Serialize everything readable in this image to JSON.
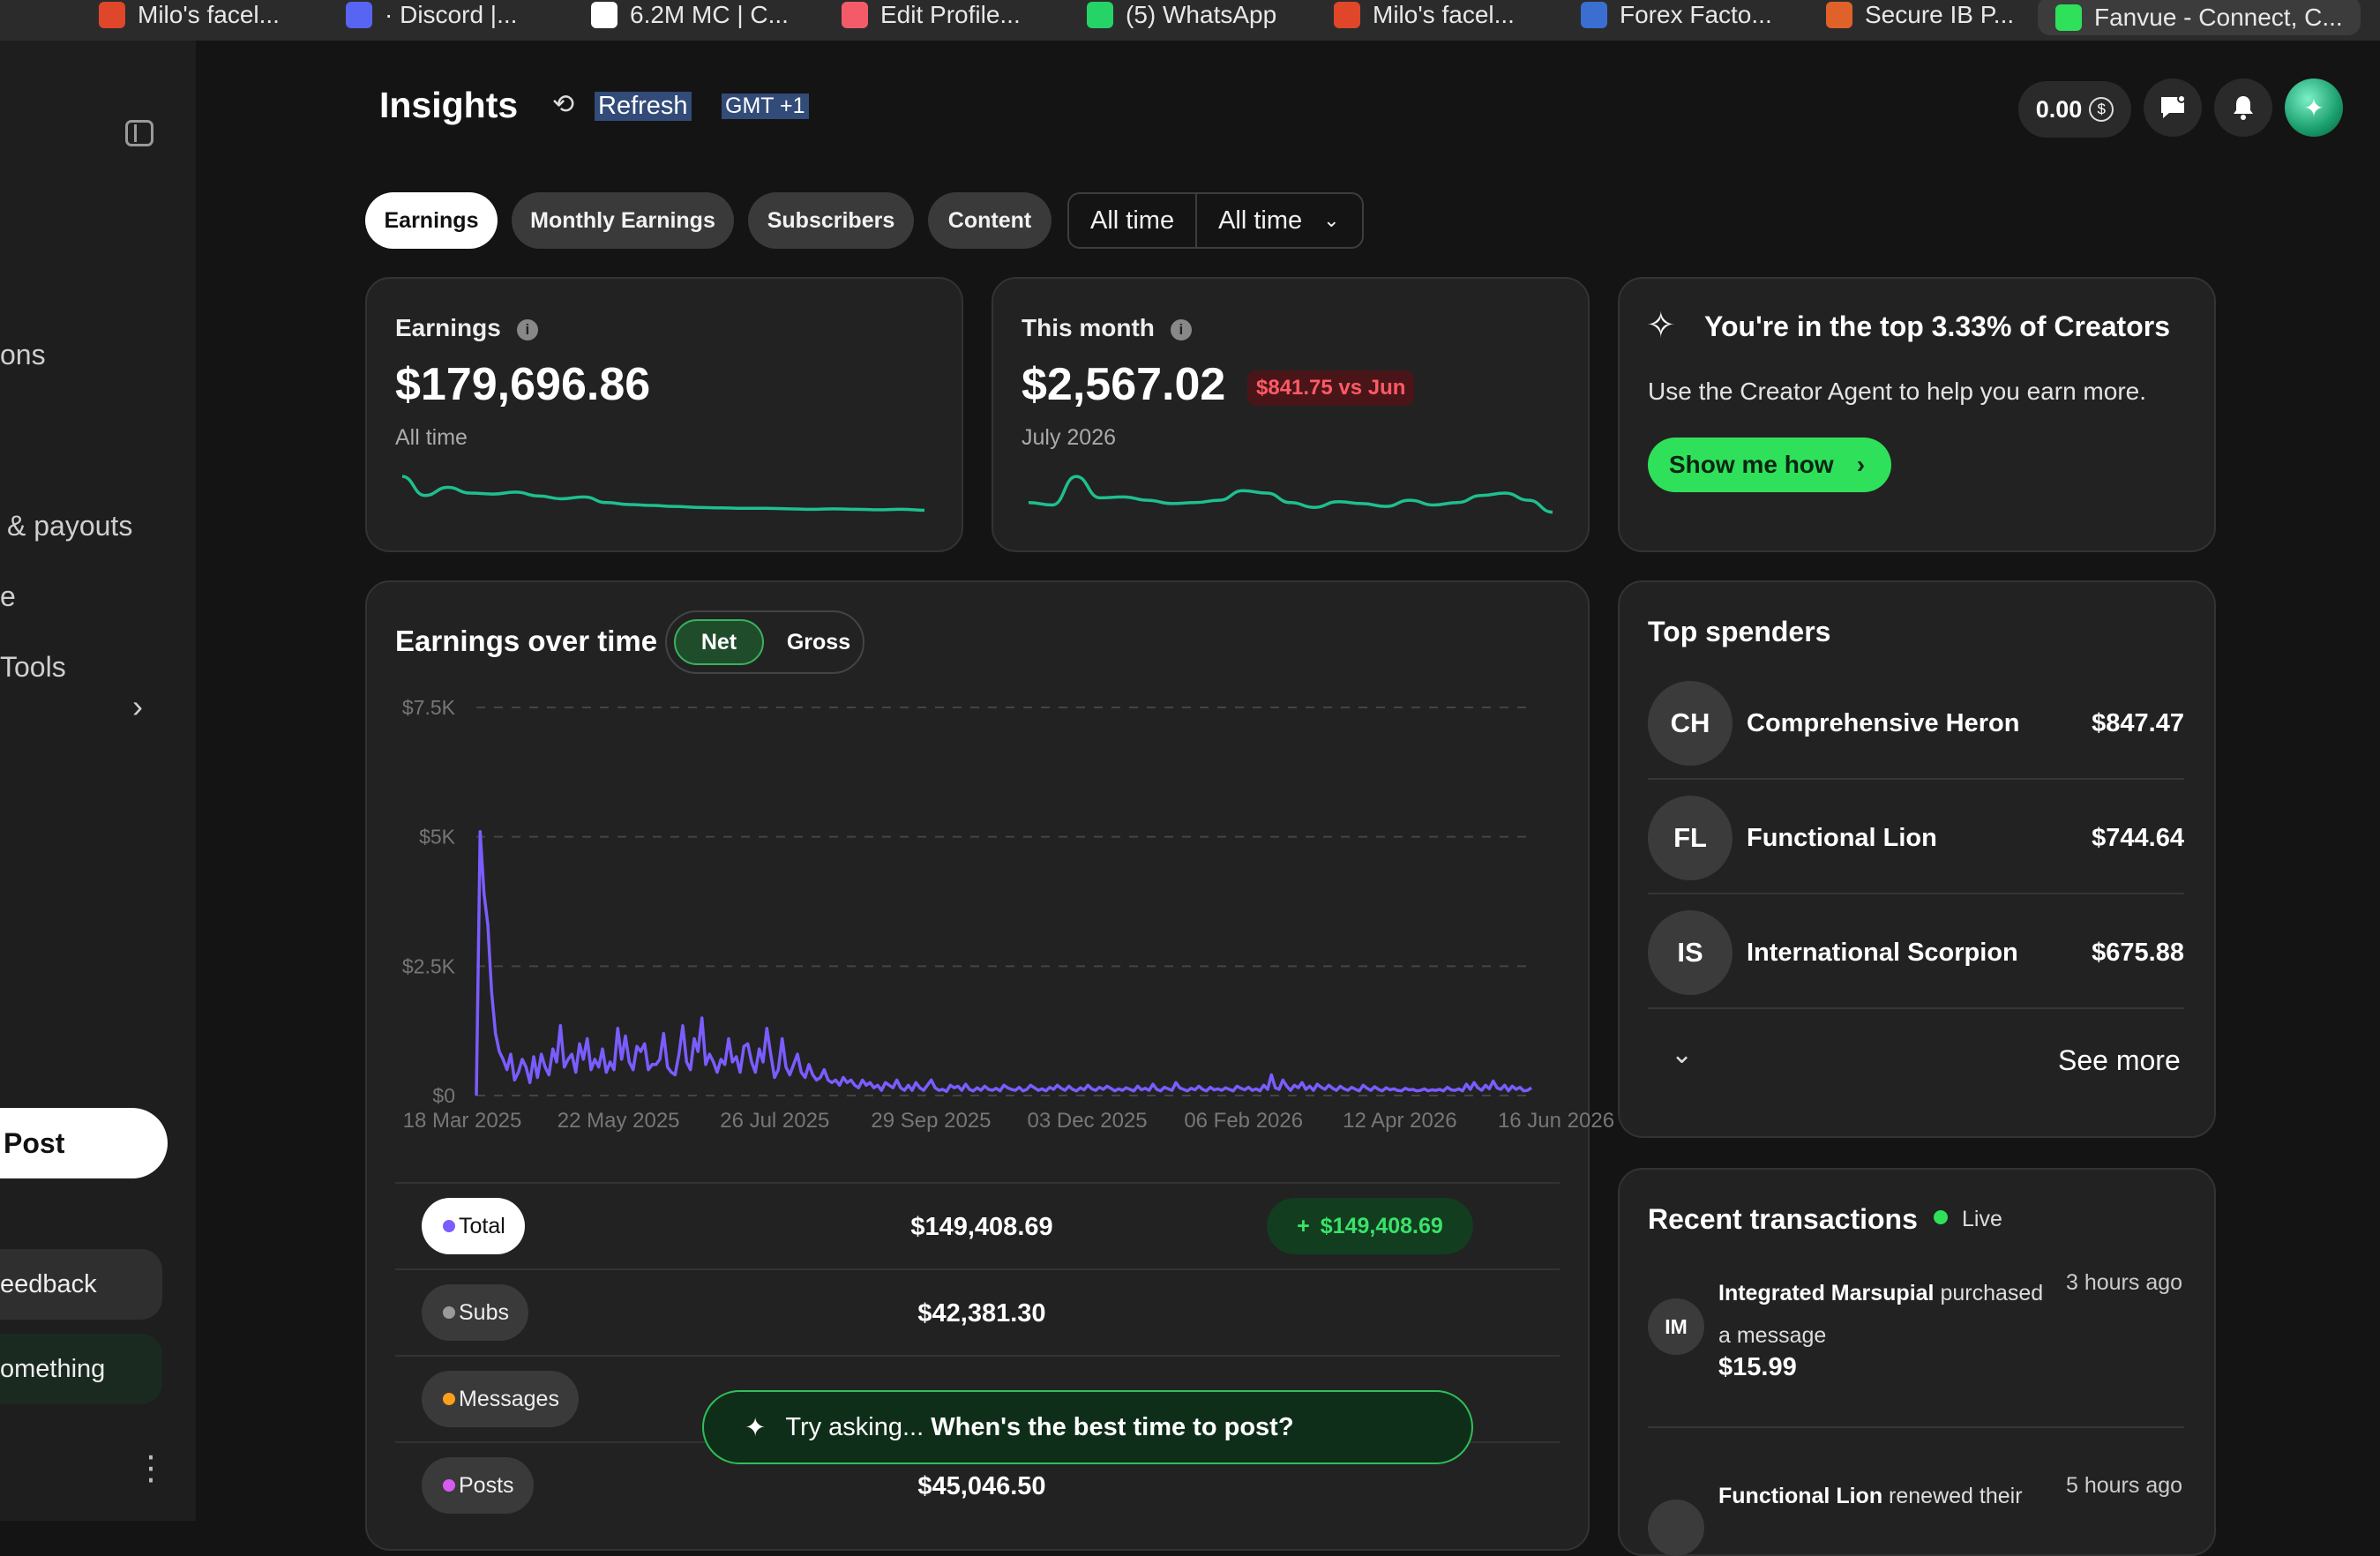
{
  "browser_tabs": [
    {
      "label": "Milo's facel...",
      "color": "#e0462a"
    },
    {
      "label": "· Discord |...",
      "color": "#5865f2"
    },
    {
      "label": "6.2M MC | C...",
      "color": "#ffffff"
    },
    {
      "label": "Edit Profile...",
      "color": "#f45b69"
    },
    {
      "label": "(5) WhatsApp",
      "color": "#25d366"
    },
    {
      "label": "Milo's facel...",
      "color": "#e0462a"
    },
    {
      "label": "Forex Facto...",
      "color": "#3a6fd1"
    },
    {
      "label": "Secure IB P...",
      "color": "#e0622a"
    },
    {
      "label": "Fanvue - Connect, C...",
      "color": "#2fe05b"
    }
  ],
  "sidebar": {
    "items": [
      "ons",
      "& payouts",
      "e",
      "Tools"
    ],
    "post_label": "Post",
    "feedback_label": "eedback",
    "something_label": "omething"
  },
  "header": {
    "title": "Insights",
    "refresh_label": "Refresh",
    "timezone": "GMT +1",
    "balance": "0.00",
    "currency_symbol": "$"
  },
  "filters": {
    "chips": [
      "Earnings",
      "Monthly Earnings",
      "Subscribers",
      "Content"
    ],
    "active": "Earnings",
    "range_from": "All time",
    "range_to": "All time"
  },
  "earnings_card": {
    "label": "Earnings",
    "value": "$179,696.86",
    "period": "All time",
    "sparkline": [
      0.85,
      0.45,
      0.62,
      0.5,
      0.48,
      0.52,
      0.44,
      0.38,
      0.42,
      0.3,
      0.26,
      0.24,
      0.22,
      0.2,
      0.19,
      0.18,
      0.18,
      0.17,
      0.16,
      0.17,
      0.16,
      0.15,
      0.16,
      0.14
    ]
  },
  "month_card": {
    "label": "This month",
    "value": "$2,567.02",
    "delta": "$841.75 vs Jun",
    "period": "July 2026",
    "sparkline": [
      0.3,
      0.25,
      0.85,
      0.4,
      0.42,
      0.35,
      0.28,
      0.3,
      0.35,
      0.55,
      0.5,
      0.3,
      0.2,
      0.32,
      0.28,
      0.22,
      0.35,
      0.25,
      0.3,
      0.45,
      0.5,
      0.35,
      0.1
    ]
  },
  "promo": {
    "title": "You're in the top 3.33% of Creators",
    "subtitle": "Use the Creator Agent to help you earn more.",
    "cta": "Show me how"
  },
  "earnings_over_time": {
    "title": "Earnings over time",
    "toggle_net": "Net",
    "toggle_gross": "Gross",
    "rows": [
      {
        "label": "Total",
        "value": "$149,408.69",
        "delta": "$149,408.69",
        "dot": "#7b5cff",
        "highlight": true
      },
      {
        "label": "Subs",
        "value": "$42,381.30",
        "dot": "#9a9a9a"
      },
      {
        "label": "Messages",
        "value": "",
        "dot": "#ff9f1a"
      },
      {
        "label": "Posts",
        "value": "$45,046.50",
        "dot": "#d65cf0"
      }
    ]
  },
  "chart_data": {
    "type": "line",
    "series": [
      {
        "values": [
          0,
          5100,
          3900,
          3300,
          2000,
          1200,
          850,
          700,
          500,
          800,
          300,
          450,
          700,
          550,
          250,
          750,
          350,
          800,
          550,
          400,
          900,
          650,
          1350,
          550,
          700,
          800,
          450,
          1000,
          700,
          1100,
          500,
          700,
          550,
          900,
          450,
          650,
          500,
          1300,
          700,
          1150,
          650,
          500,
          950,
          850,
          1000,
          500,
          600,
          600,
          700,
          1200,
          550,
          450,
          400,
          800,
          1350,
          650,
          500,
          1100,
          850,
          1500,
          600,
          800,
          650,
          450,
          700,
          600,
          1100,
          650,
          750,
          450,
          950,
          1000,
          650,
          450,
          900,
          650,
          1300,
          800,
          350,
          500,
          1100,
          550,
          400,
          600,
          800,
          450,
          350,
          600,
          400,
          300,
          350,
          500,
          300,
          250,
          300,
          200,
          350,
          250,
          300,
          200,
          150,
          300,
          200,
          250,
          150,
          200,
          100,
          250,
          200,
          150,
          300,
          150,
          100,
          200,
          100,
          250,
          150,
          100,
          200,
          300,
          150,
          100,
          120,
          80,
          200,
          150,
          180,
          100,
          220,
          120,
          90,
          150,
          100,
          180,
          120,
          100,
          140,
          90,
          200,
          150,
          120,
          100,
          160,
          90,
          120,
          200,
          150,
          100,
          130,
          90,
          160,
          120,
          200,
          140,
          100,
          180,
          120,
          90,
          150,
          110,
          200,
          130,
          100,
          160,
          120,
          180,
          140,
          90,
          130,
          100,
          150,
          120,
          90,
          180,
          110,
          140,
          100,
          220,
          120,
          90,
          160,
          130,
          100,
          250,
          150,
          120,
          90,
          140,
          110,
          180,
          120,
          90,
          160,
          110,
          130,
          100,
          150,
          120,
          90,
          180,
          140,
          110,
          160,
          100,
          130,
          90,
          200,
          120,
          400,
          150,
          120,
          300,
          180,
          100,
          200,
          150,
          250,
          120,
          180,
          100,
          220,
          160,
          120,
          200,
          140,
          100,
          180,
          130,
          100,
          160,
          120,
          90,
          200,
          140,
          100,
          170,
          120,
          90,
          150,
          110,
          130,
          100,
          90,
          140,
          110,
          120,
          90,
          100,
          130,
          90,
          110,
          100,
          120,
          90,
          160,
          110,
          100,
          130,
          90,
          220,
          120,
          250,
          150,
          100,
          200,
          130,
          280,
          150,
          120,
          200,
          90,
          180,
          120,
          160,
          90,
          100,
          150
        ]
      }
    ],
    "x_tick_labels": [
      "18 Mar 2025",
      "22 May 2025",
      "26 Jul 2025",
      "29 Sep 2025",
      "03 Dec 2025",
      "06 Feb 2026",
      "12 Apr 2026",
      "16 Jun 2026"
    ],
    "y_tick_labels": [
      "$7.5K",
      "$5K",
      "$2.5K",
      "$0"
    ],
    "ylim": [
      0,
      7500
    ],
    "color": "#7b5cff",
    "grid": true
  },
  "ask": {
    "prefix": "Try asking...",
    "question": "When's the best time to post?"
  },
  "top_spenders": {
    "title": "Top spenders",
    "items": [
      {
        "initials": "CH",
        "name": "Comprehensive Heron",
        "amount": "$847.47"
      },
      {
        "initials": "FL",
        "name": "Functional Lion",
        "amount": "$744.64"
      },
      {
        "initials": "IS",
        "name": "International Scorpion",
        "amount": "$675.88"
      }
    ],
    "see_more": "See more"
  },
  "recent_transactions": {
    "title": "Recent transactions",
    "live_label": "Live",
    "items": [
      {
        "initials": "IM",
        "name": "Integrated Marsupial",
        "action": "purchased",
        "action2": "a message",
        "amount": "$15.99",
        "time": "3 hours ago"
      },
      {
        "initials": "",
        "name": "Functional Lion",
        "action": "renewed their",
        "time": "5 hours ago"
      }
    ]
  }
}
